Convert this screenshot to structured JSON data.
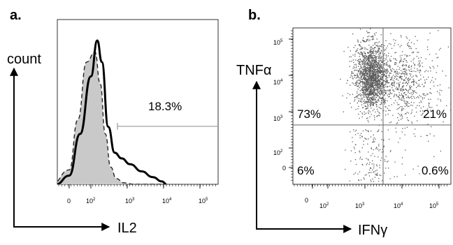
{
  "chart_data": [
    {
      "type": "area",
      "panel_label": "a.",
      "xlabel": "IL2",
      "ylabel": "count",
      "x_scale": "log (biexponential)",
      "x_ticks": [
        {
          "base": "0",
          "exp": ""
        },
        {
          "base": "10",
          "exp": "2"
        },
        {
          "base": "10",
          "exp": "3"
        },
        {
          "base": "10",
          "exp": "4"
        },
        {
          "base": "10",
          "exp": "5"
        }
      ],
      "gate_label": "18.3%",
      "series": [
        {
          "style": "grey filled, dashed outline",
          "x": [
            -80,
            0,
            40,
            80,
            130,
            180,
            250,
            350,
            500,
            800,
            1500,
            3000,
            10000
          ],
          "y": [
            0,
            10,
            45,
            85,
            92,
            70,
            35,
            12,
            4,
            1,
            0,
            0,
            0
          ]
        },
        {
          "style": "black solid line",
          "x": [
            -60,
            0,
            50,
            100,
            150,
            200,
            300,
            450,
            700,
            1200,
            2500,
            5000,
            9000,
            12000
          ],
          "y": [
            0,
            6,
            35,
            75,
            100,
            85,
            40,
            22,
            18,
            14,
            9,
            5,
            2,
            0
          ]
        }
      ]
    },
    {
      "type": "scatter",
      "panel_label": "b.",
      "xlabel": "IFNγ",
      "ylabel": "TNFα",
      "x_scale": "log (biexponential)",
      "y_scale": "log (biexponential)",
      "x_ticks": [
        {
          "base": "0",
          "exp": ""
        },
        {
          "base": "10",
          "exp": "2"
        },
        {
          "base": "10",
          "exp": "3"
        },
        {
          "base": "10",
          "exp": "4"
        },
        {
          "base": "10",
          "exp": "5"
        }
      ],
      "y_ticks": [
        {
          "base": "0",
          "exp": ""
        },
        {
          "base": "10",
          "exp": "2"
        },
        {
          "base": "10",
          "exp": "3"
        },
        {
          "base": "10",
          "exp": "4"
        },
        {
          "base": "10",
          "exp": "5"
        }
      ],
      "quadrants": {
        "upper_left": "73%",
        "upper_right": "21%",
        "lower_left": "6%",
        "lower_right": "0.6%"
      },
      "populations": [
        {
          "region": "IFNγ− TNFα+",
          "x_center": 1500,
          "y_center": 8000,
          "share": 0.73
        },
        {
          "region": "IFNγ+ TNFα+",
          "x_center": 9000,
          "y_center": 6000,
          "share": 0.21
        },
        {
          "region": "IFNγ− TNFα−",
          "x_center": 1500,
          "y_center": 80,
          "share": 0.06
        },
        {
          "region": "IFNγ+ TNFα−",
          "x_center": 8000,
          "y_center": 80,
          "share": 0.006
        }
      ]
    }
  ]
}
